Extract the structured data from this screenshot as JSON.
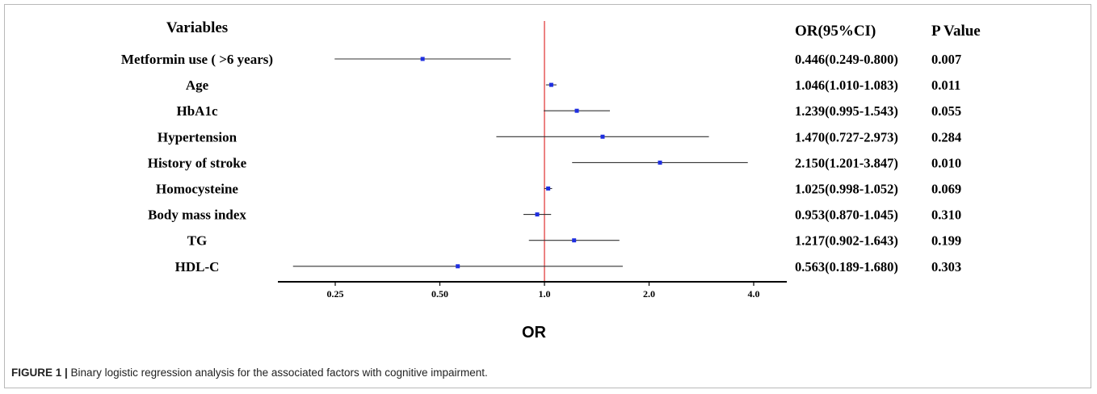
{
  "chart_data": {
    "type": "forest",
    "column_headers": {
      "variables": "Variables",
      "or_ci": "OR(95%CI)",
      "p_value": "P Value"
    },
    "rows": [
      {
        "variable": "Metformin use ( >6 years)",
        "or": 0.446,
        "lower": 0.249,
        "upper": 0.8,
        "or_ci": "0.446(0.249-0.800)",
        "p": "0.007"
      },
      {
        "variable": "Age",
        "or": 1.046,
        "lower": 1.01,
        "upper": 1.083,
        "or_ci": "1.046(1.010-1.083)",
        "p": "0.011"
      },
      {
        "variable": "HbA1c",
        "or": 1.239,
        "lower": 0.995,
        "upper": 1.543,
        "or_ci": "1.239(0.995-1.543)",
        "p": "0.055"
      },
      {
        "variable": "Hypertension",
        "or": 1.47,
        "lower": 0.727,
        "upper": 2.973,
        "or_ci": "1.470(0.727-2.973)",
        "p": "0.284"
      },
      {
        "variable": "History of stroke",
        "or": 2.15,
        "lower": 1.201,
        "upper": 3.847,
        "or_ci": "2.150(1.201-3.847)",
        "p": "0.010"
      },
      {
        "variable": "Homocysteine",
        "or": 1.025,
        "lower": 0.998,
        "upper": 1.052,
        "or_ci": "1.025(0.998-1.052)",
        "p": "0.069"
      },
      {
        "variable": "Body mass index",
        "or": 0.953,
        "lower": 0.87,
        "upper": 1.045,
        "or_ci": "0.953(0.870-1.045)",
        "p": "0.310"
      },
      {
        "variable": "TG",
        "or": 1.217,
        "lower": 0.902,
        "upper": 1.643,
        "or_ci": "1.217(0.902-1.643)",
        "p": "0.199"
      },
      {
        "variable": "HDL-C",
        "or": 0.563,
        "lower": 0.189,
        "upper": 1.68,
        "or_ci": "0.563(0.189-1.680)",
        "p": "0.303"
      }
    ],
    "x_scale": "log2",
    "x_ticks": [
      0.25,
      0.5,
      1.0,
      2.0,
      4.0
    ],
    "x_tick_labels": [
      "0.25",
      "0.50",
      "1.0",
      "2.0",
      "4.0"
    ],
    "reference_line": 1.0,
    "xlabel": "OR",
    "colors": {
      "point": "#1f2fe0",
      "reference": "#e03030",
      "ci": "#333333"
    }
  },
  "caption": {
    "label": "FIGURE 1 |",
    "text": " Binary logistic regression analysis for the associated factors with cognitive impairment."
  }
}
